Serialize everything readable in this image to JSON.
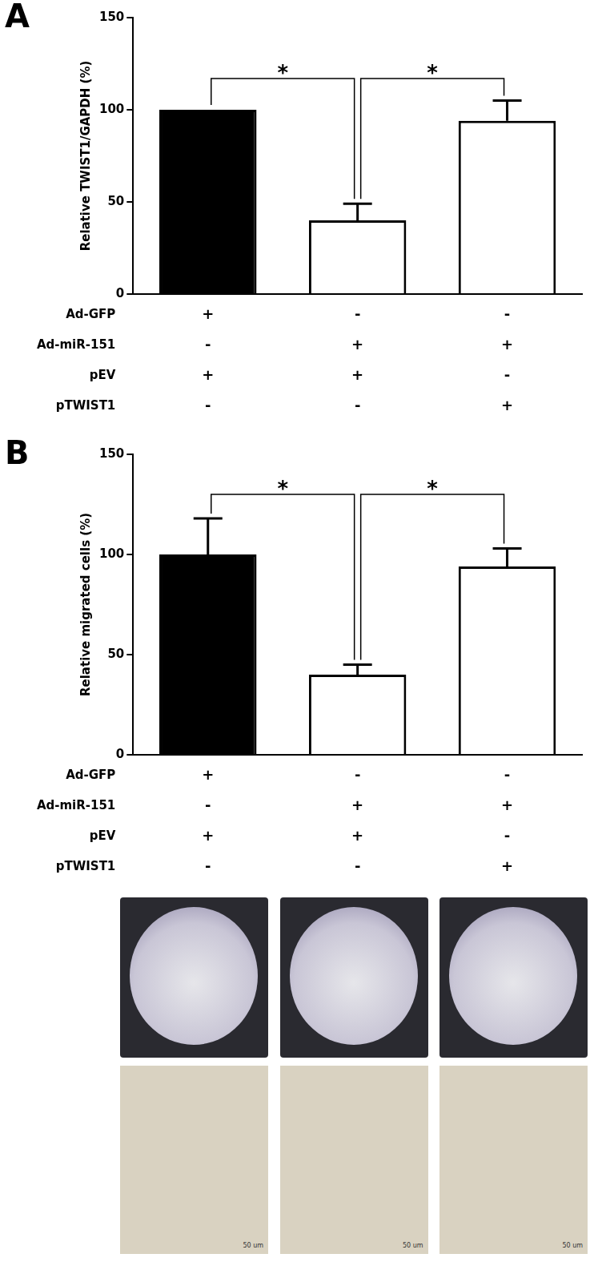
{
  "chart_data": [
    {
      "type": "bar",
      "panel": "A",
      "y_label": "Relative TWIST1/GAPDH (%)",
      "categories": [
        null,
        null,
        null
      ],
      "values": [
        100,
        40,
        94
      ],
      "errors": [
        0,
        9,
        11
      ],
      "colors": [
        "#000000",
        "#ffffff",
        "#ffffff"
      ],
      "ylim": [
        0,
        150
      ],
      "yticks": [
        0,
        50,
        100,
        150
      ],
      "grid": false,
      "tick_labels": "y",
      "significance": [
        {
          "from": 0,
          "to": 1,
          "label": "*"
        },
        {
          "from": 1,
          "to": 2,
          "label": "*"
        }
      ],
      "conditions": [
        {
          "name": "Ad-GFP",
          "marks": [
            "+",
            "-",
            "-"
          ]
        },
        {
          "name": "Ad-miR-151",
          "marks": [
            "-",
            "+",
            "+"
          ]
        },
        {
          "name": "pEV",
          "marks": [
            "+",
            "+",
            "-"
          ]
        },
        {
          "name": "pTWIST1",
          "marks": [
            "-",
            "-",
            "+"
          ]
        }
      ]
    },
    {
      "type": "bar",
      "panel": "B",
      "y_label": "Relative migrated cells (%)",
      "categories": [
        null,
        null,
        null
      ],
      "values": [
        100,
        40,
        94
      ],
      "errors": [
        18,
        5,
        9
      ],
      "colors": [
        "#000000",
        "#ffffff",
        "#ffffff"
      ],
      "ylim": [
        0,
        150
      ],
      "yticks": [
        0,
        50,
        100,
        150
      ],
      "grid": false,
      "tick_labels": "y",
      "significance": [
        {
          "from": 0,
          "to": 1,
          "label": "*"
        },
        {
          "from": 1,
          "to": 2,
          "label": "*"
        }
      ],
      "conditions": [
        {
          "name": "Ad-GFP",
          "marks": [
            "+",
            "-",
            "-"
          ]
        },
        {
          "name": "Ad-miR-151",
          "marks": [
            "-",
            "+",
            "+"
          ]
        },
        {
          "name": "pEV",
          "marks": [
            "+",
            "+",
            "-"
          ]
        },
        {
          "name": "pTWIST1",
          "marks": [
            "-",
            "-",
            "+"
          ]
        }
      ]
    }
  ],
  "micrographs": [
    {
      "scale_bar": "50 um"
    },
    {
      "scale_bar": "50 um"
    },
    {
      "scale_bar": "50 um"
    }
  ]
}
